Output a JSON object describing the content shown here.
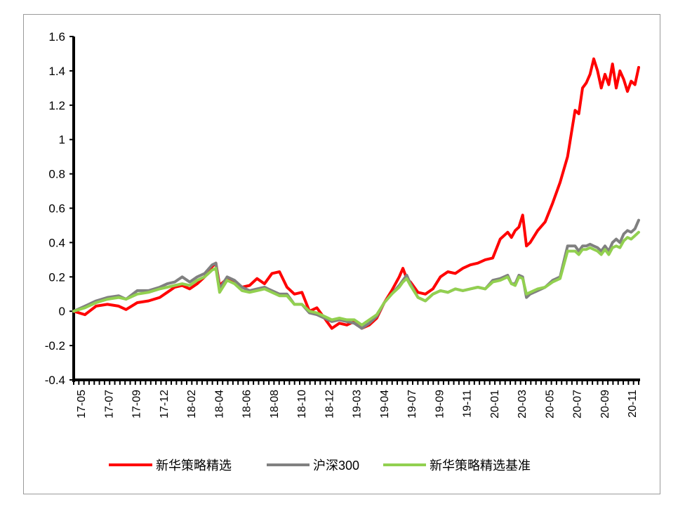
{
  "chart_data": {
    "type": "line",
    "title": "",
    "xlabel": "",
    "ylabel": "",
    "ylim": [
      -0.4,
      1.6
    ],
    "yticks": [
      "-0.4",
      "-0.2",
      "0",
      "0.2",
      "0.4",
      "0.6",
      "0.8",
      "1",
      "1.2",
      "1.4",
      "1.6"
    ],
    "xticks": [
      "17-05",
      "17-07",
      "17-09",
      "17-12",
      "18-02",
      "18-04",
      "18-06",
      "18-08",
      "18-10",
      "18-12",
      "19-03",
      "19-04",
      "19-07",
      "19-09",
      "19-11",
      "20-01",
      "20-03",
      "20-05",
      "20-07",
      "20-09",
      "20-11"
    ],
    "grid": false,
    "legend_position": "bottom",
    "series": [
      {
        "name": "新华策略精选",
        "color": "#ff0000",
        "points": [
          [
            0,
            0
          ],
          [
            3,
            -0.02
          ],
          [
            6,
            0.03
          ],
          [
            9,
            0.04
          ],
          [
            12,
            0.03
          ],
          [
            14,
            0.01
          ],
          [
            17,
            0.05
          ],
          [
            20,
            0.06
          ],
          [
            23,
            0.08
          ],
          [
            25,
            0.11
          ],
          [
            27,
            0.14
          ],
          [
            29,
            0.15
          ],
          [
            31,
            0.13
          ],
          [
            33,
            0.16
          ],
          [
            35,
            0.2
          ],
          [
            37,
            0.26
          ],
          [
            38,
            0.28
          ],
          [
            39,
            0.15
          ],
          [
            41,
            0.19
          ],
          [
            43,
            0.17
          ],
          [
            45,
            0.14
          ],
          [
            47,
            0.15
          ],
          [
            49,
            0.19
          ],
          [
            51,
            0.16
          ],
          [
            53,
            0.22
          ],
          [
            55,
            0.23
          ],
          [
            57,
            0.14
          ],
          [
            59,
            0.1
          ],
          [
            61,
            0.11
          ],
          [
            63,
            0
          ],
          [
            65,
            0.02
          ],
          [
            67,
            -0.04
          ],
          [
            69,
            -0.1
          ],
          [
            71,
            -0.07
          ],
          [
            73,
            -0.08
          ],
          [
            75,
            -0.06
          ],
          [
            77,
            -0.1
          ],
          [
            79,
            -0.08
          ],
          [
            81,
            -0.04
          ],
          [
            83,
            0.05
          ],
          [
            85,
            0.12
          ],
          [
            87,
            0.2
          ],
          [
            88,
            0.25
          ],
          [
            89,
            0.19
          ],
          [
            90,
            0.17
          ],
          [
            92,
            0.11
          ],
          [
            94,
            0.1
          ],
          [
            96,
            0.13
          ],
          [
            98,
            0.2
          ],
          [
            100,
            0.23
          ],
          [
            102,
            0.22
          ],
          [
            104,
            0.25
          ],
          [
            106,
            0.27
          ],
          [
            108,
            0.28
          ],
          [
            110,
            0.3
          ],
          [
            112,
            0.31
          ],
          [
            114,
            0.42
          ],
          [
            116,
            0.46
          ],
          [
            117,
            0.43
          ],
          [
            118,
            0.47
          ],
          [
            119,
            0.49
          ],
          [
            120,
            0.56
          ],
          [
            121,
            0.38
          ],
          [
            122,
            0.4
          ],
          [
            124,
            0.47
          ],
          [
            126,
            0.52
          ],
          [
            128,
            0.63
          ],
          [
            130,
            0.75
          ],
          [
            132,
            0.9
          ],
          [
            134,
            1.17
          ],
          [
            135,
            1.15
          ],
          [
            136,
            1.3
          ],
          [
            137,
            1.33
          ],
          [
            138,
            1.38
          ],
          [
            139,
            1.47
          ],
          [
            140,
            1.4
          ],
          [
            141,
            1.3
          ],
          [
            142,
            1.38
          ],
          [
            143,
            1.32
          ],
          [
            144,
            1.44
          ],
          [
            145,
            1.3
          ],
          [
            146,
            1.4
          ],
          [
            147,
            1.35
          ],
          [
            148,
            1.28
          ],
          [
            149,
            1.34
          ],
          [
            150,
            1.32
          ],
          [
            151,
            1.42
          ]
        ]
      },
      {
        "name": "沪深300",
        "color": "#808080",
        "points": [
          [
            0,
            0
          ],
          [
            3,
            0.03
          ],
          [
            6,
            0.06
          ],
          [
            9,
            0.08
          ],
          [
            12,
            0.09
          ],
          [
            14,
            0.07
          ],
          [
            17,
            0.12
          ],
          [
            20,
            0.12
          ],
          [
            23,
            0.14
          ],
          [
            25,
            0.16
          ],
          [
            27,
            0.17
          ],
          [
            29,
            0.2
          ],
          [
            31,
            0.17
          ],
          [
            33,
            0.2
          ],
          [
            35,
            0.22
          ],
          [
            37,
            0.27
          ],
          [
            38,
            0.28
          ],
          [
            39,
            0.13
          ],
          [
            41,
            0.2
          ],
          [
            43,
            0.18
          ],
          [
            45,
            0.14
          ],
          [
            47,
            0.12
          ],
          [
            49,
            0.13
          ],
          [
            51,
            0.14
          ],
          [
            53,
            0.12
          ],
          [
            55,
            0.1
          ],
          [
            57,
            0.1
          ],
          [
            59,
            0.04
          ],
          [
            61,
            0.04
          ],
          [
            63,
            -0.01
          ],
          [
            65,
            -0.02
          ],
          [
            67,
            -0.04
          ],
          [
            69,
            -0.06
          ],
          [
            71,
            -0.05
          ],
          [
            73,
            -0.06
          ],
          [
            75,
            -0.07
          ],
          [
            77,
            -0.1
          ],
          [
            79,
            -0.07
          ],
          [
            81,
            -0.03
          ],
          [
            83,
            0.05
          ],
          [
            85,
            0.1
          ],
          [
            87,
            0.15
          ],
          [
            88,
            0.18
          ],
          [
            89,
            0.21
          ],
          [
            90,
            0.16
          ],
          [
            92,
            0.08
          ],
          [
            94,
            0.06
          ],
          [
            96,
            0.1
          ],
          [
            98,
            0.12
          ],
          [
            100,
            0.11
          ],
          [
            102,
            0.13
          ],
          [
            104,
            0.12
          ],
          [
            106,
            0.13
          ],
          [
            108,
            0.14
          ],
          [
            110,
            0.13
          ],
          [
            112,
            0.18
          ],
          [
            114,
            0.19
          ],
          [
            116,
            0.21
          ],
          [
            117,
            0.16
          ],
          [
            118,
            0.16
          ],
          [
            119,
            0.21
          ],
          [
            120,
            0.2
          ],
          [
            121,
            0.08
          ],
          [
            122,
            0.1
          ],
          [
            124,
            0.12
          ],
          [
            126,
            0.14
          ],
          [
            128,
            0.18
          ],
          [
            130,
            0.2
          ],
          [
            132,
            0.38
          ],
          [
            134,
            0.38
          ],
          [
            135,
            0.35
          ],
          [
            136,
            0.38
          ],
          [
            137,
            0.38
          ],
          [
            138,
            0.39
          ],
          [
            139,
            0.38
          ],
          [
            140,
            0.37
          ],
          [
            141,
            0.35
          ],
          [
            142,
            0.38
          ],
          [
            143,
            0.35
          ],
          [
            144,
            0.4
          ],
          [
            145,
            0.42
          ],
          [
            146,
            0.4
          ],
          [
            147,
            0.45
          ],
          [
            148,
            0.47
          ],
          [
            149,
            0.46
          ],
          [
            150,
            0.48
          ],
          [
            151,
            0.53
          ]
        ]
      },
      {
        "name": "新华策略精选基准",
        "color": "#92d050",
        "points": [
          [
            0,
            0
          ],
          [
            3,
            0.02
          ],
          [
            6,
            0.05
          ],
          [
            9,
            0.07
          ],
          [
            12,
            0.08
          ],
          [
            14,
            0.07
          ],
          [
            17,
            0.1
          ],
          [
            20,
            0.11
          ],
          [
            23,
            0.13
          ],
          [
            25,
            0.14
          ],
          [
            27,
            0.15
          ],
          [
            29,
            0.16
          ],
          [
            31,
            0.15
          ],
          [
            33,
            0.18
          ],
          [
            35,
            0.2
          ],
          [
            37,
            0.24
          ],
          [
            38,
            0.25
          ],
          [
            39,
            0.11
          ],
          [
            41,
            0.18
          ],
          [
            43,
            0.16
          ],
          [
            45,
            0.12
          ],
          [
            47,
            0.11
          ],
          [
            49,
            0.12
          ],
          [
            51,
            0.13
          ],
          [
            53,
            0.11
          ],
          [
            55,
            0.09
          ],
          [
            57,
            0.09
          ],
          [
            59,
            0.04
          ],
          [
            61,
            0.04
          ],
          [
            63,
            0
          ],
          [
            65,
            -0.01
          ],
          [
            67,
            -0.03
          ],
          [
            69,
            -0.05
          ],
          [
            71,
            -0.04
          ],
          [
            73,
            -0.05
          ],
          [
            75,
            -0.05
          ],
          [
            77,
            -0.08
          ],
          [
            79,
            -0.05
          ],
          [
            81,
            -0.02
          ],
          [
            83,
            0.05
          ],
          [
            85,
            0.1
          ],
          [
            87,
            0.14
          ],
          [
            88,
            0.17
          ],
          [
            89,
            0.19
          ],
          [
            90,
            0.15
          ],
          [
            92,
            0.08
          ],
          [
            94,
            0.06
          ],
          [
            96,
            0.1
          ],
          [
            98,
            0.12
          ],
          [
            100,
            0.11
          ],
          [
            102,
            0.13
          ],
          [
            104,
            0.12
          ],
          [
            106,
            0.13
          ],
          [
            108,
            0.14
          ],
          [
            110,
            0.13
          ],
          [
            112,
            0.17
          ],
          [
            114,
            0.18
          ],
          [
            116,
            0.2
          ],
          [
            117,
            0.16
          ],
          [
            118,
            0.15
          ],
          [
            119,
            0.2
          ],
          [
            120,
            0.19
          ],
          [
            121,
            0.1
          ],
          [
            122,
            0.11
          ],
          [
            124,
            0.13
          ],
          [
            126,
            0.14
          ],
          [
            128,
            0.17
          ],
          [
            130,
            0.19
          ],
          [
            132,
            0.35
          ],
          [
            134,
            0.35
          ],
          [
            135,
            0.33
          ],
          [
            136,
            0.36
          ],
          [
            137,
            0.36
          ],
          [
            138,
            0.37
          ],
          [
            139,
            0.36
          ],
          [
            140,
            0.35
          ],
          [
            141,
            0.33
          ],
          [
            142,
            0.36
          ],
          [
            143,
            0.33
          ],
          [
            144,
            0.37
          ],
          [
            145,
            0.38
          ],
          [
            146,
            0.37
          ],
          [
            147,
            0.41
          ],
          [
            148,
            0.43
          ],
          [
            149,
            0.42
          ],
          [
            150,
            0.44
          ],
          [
            151,
            0.46
          ]
        ]
      }
    ]
  }
}
